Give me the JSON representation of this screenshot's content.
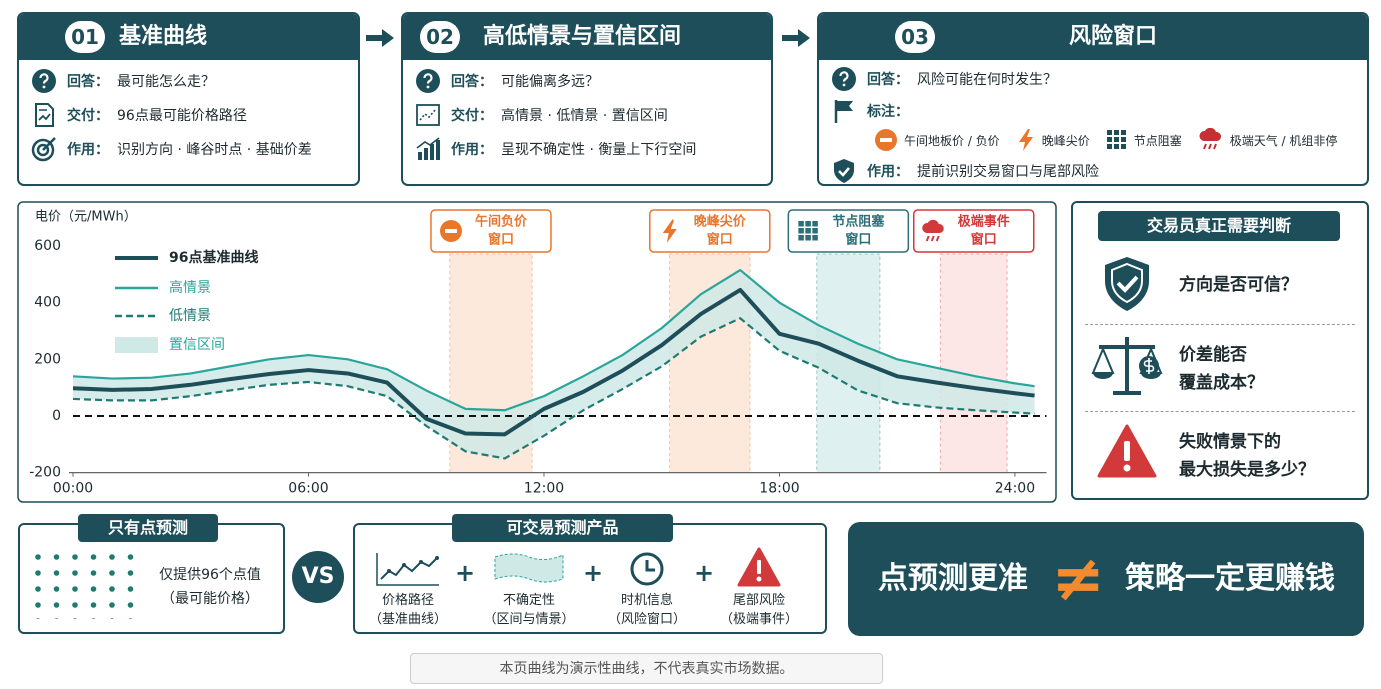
{
  "steps": [
    {
      "number": "01",
      "title": "基准曲线",
      "rows": [
        {
          "label": "回答：",
          "text": "最可能怎么走？"
        },
        {
          "label": "交付：",
          "text": "96点最可能价格路径"
        },
        {
          "label": "作用：",
          "text": "识别方向 · 峰谷时点 · 基础价差"
        }
      ]
    },
    {
      "number": "02",
      "title": "高低情景与置信区间",
      "rows": [
        {
          "label": "回答：",
          "text": "可能偏离多远？"
        },
        {
          "label": "交付：",
          "text": "高情景 · 低情景 · 置信区间"
        },
        {
          "label": "作用：",
          "text": "呈现不确定性 · 衡量上下行空间"
        }
      ]
    },
    {
      "number": "03",
      "title": "风险窗口",
      "rows": [
        {
          "label": "回答：",
          "text": "风险可能在何时发生？"
        },
        {
          "label": "作用：",
          "text": "提前识别交易窗口与尾部风险"
        }
      ],
      "legend_label": "标注：",
      "legend": [
        "午间地板价 / 负价",
        "晚峰尖价",
        "节点阻塞",
        "极端天气 / 机组非停"
      ]
    }
  ],
  "chart_data": {
    "type": "line",
    "y_label": "电价（元/MWh）",
    "x": [
      0,
      1,
      2,
      3,
      4,
      5,
      6,
      7,
      8,
      9,
      10,
      11,
      12,
      13,
      14,
      15,
      16,
      17,
      18,
      19,
      20,
      21,
      22,
      23,
      24,
      24.5
    ],
    "xlim": [
      0,
      24.6
    ],
    "xticks": [
      {
        "value": 0,
        "label": "00:00"
      },
      {
        "value": 6,
        "label": "06:00"
      },
      {
        "value": 12,
        "label": "12:00"
      },
      {
        "value": 18,
        "label": "18:00"
      },
      {
        "value": 24,
        "label": "24:00"
      }
    ],
    "ylim": [
      -200,
      600
    ],
    "yticks": [
      -200,
      0,
      200,
      400,
      600
    ],
    "zero_line": true,
    "legend": "upper-left",
    "series": [
      {
        "name": "96点基准曲线",
        "color": "#1d4e5a",
        "values": [
          98,
          92,
          95,
          110,
          130,
          148,
          162,
          150,
          118,
          -10,
          -62,
          -65,
          25,
          85,
          160,
          250,
          360,
          445,
          290,
          255,
          195,
          140,
          118,
          98,
          80,
          72
        ]
      },
      {
        "name": "高情景",
        "color": "#2aa59a",
        "values": [
          140,
          132,
          135,
          150,
          175,
          200,
          215,
          200,
          165,
          90,
          25,
          20,
          70,
          140,
          215,
          310,
          430,
          515,
          400,
          320,
          255,
          200,
          170,
          140,
          115,
          105
        ]
      },
      {
        "name": "低情景",
        "color": "#1f7a72",
        "dash": true,
        "values": [
          60,
          55,
          55,
          70,
          90,
          110,
          120,
          105,
          70,
          -35,
          -125,
          -150,
          -70,
          20,
          95,
          175,
          280,
          345,
          230,
          170,
          90,
          45,
          30,
          20,
          12,
          8
        ]
      }
    ],
    "band": {
      "name": "置信区间",
      "color": "#cfe9e6"
    },
    "windows": [
      {
        "label": [
          "午间负价",
          "窗口"
        ],
        "x": [
          9.6,
          11.7
        ],
        "color": "#e8762b",
        "fill": "#fbe3d3"
      },
      {
        "label": [
          "晚峰尖价",
          "窗口"
        ],
        "x": [
          15.2,
          17.25
        ],
        "color": "#e8762b",
        "fill": "#fbe3d3"
      },
      {
        "label": [
          "节点阻塞",
          "窗口"
        ],
        "x": [
          18.95,
          20.56
        ],
        "color": "#2b6f78",
        "fill": "#d6eeec"
      },
      {
        "label": [
          "极端事件",
          "窗口"
        ],
        "x": [
          22.1,
          23.8
        ],
        "color": "#d2393a",
        "fill": "#fbe0e0"
      }
    ]
  },
  "judgement": {
    "title": "交易员真正需要判断",
    "items": [
      [
        "方向是否可信？"
      ],
      [
        "价差能否",
        "覆盖成本？"
      ],
      [
        "失败情景下的",
        "最大损失是多少？"
      ]
    ]
  },
  "point_forecast": {
    "title": "只有点预测",
    "lines": [
      "仅提供96个点值",
      "（最可能价格）"
    ]
  },
  "vs": "VS",
  "product": {
    "title": "可交易预测产品",
    "plus": "+",
    "items": [
      [
        "价格路径",
        "（基准曲线）"
      ],
      [
        "不确定性",
        "（区间与情景）"
      ],
      [
        "时机信息",
        "（风险窗口）"
      ],
      [
        "尾部风险",
        "（极端事件）"
      ]
    ]
  },
  "conclusion": {
    "left": "点预测更准",
    "symbol": "≠",
    "right": "策略一定更赚钱"
  },
  "footer": "本页曲线为演示性曲线，不代表真实市场数据。"
}
